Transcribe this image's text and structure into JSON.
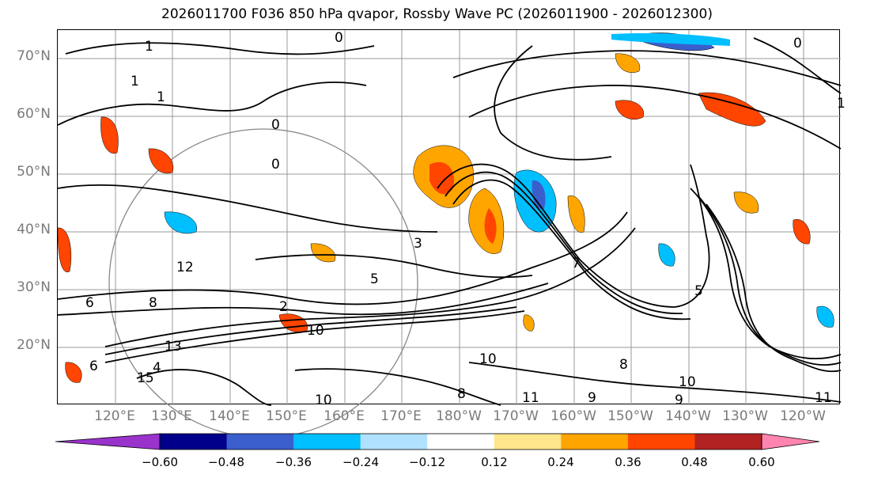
{
  "title": "2026011700 F036 850 hPa qvapor, Rossby Wave PC (2026011900 - 2026012300)",
  "lat_labels": [
    "70°N",
    "60°N",
    "50°N",
    "40°N",
    "30°N",
    "20°N"
  ],
  "lon_labels": [
    "120°E",
    "130°E",
    "140°E",
    "150°E",
    "160°E",
    "170°E",
    "180°W",
    "170°W",
    "160°W",
    "150°W",
    "140°W",
    "130°W",
    "120°W"
  ],
  "colorbar": {
    "colors": [
      "#9933cc",
      "#00008b",
      "#3a5fcd",
      "#00bfff",
      "#b0e2ff",
      "#ffffff",
      "#ffe68a",
      "#ffa500",
      "#ff4500",
      "#b22222",
      "#ff85b0"
    ],
    "tick_labels": [
      "−0.60",
      "−0.48",
      "−0.36",
      "−0.24",
      "−0.12",
      "0.12",
      "0.24",
      "0.36",
      "0.48",
      "0.60"
    ]
  },
  "contour_labels": [
    "1",
    "1",
    "1",
    "0",
    "0",
    "0",
    "0",
    "1",
    "2",
    "3",
    "5",
    "6",
    "8",
    "10",
    "13",
    "15",
    "10",
    "10",
    "8",
    "9",
    "11",
    "5",
    "9",
    "11",
    "10",
    "8",
    "7",
    "4",
    "6",
    "12"
  ]
}
